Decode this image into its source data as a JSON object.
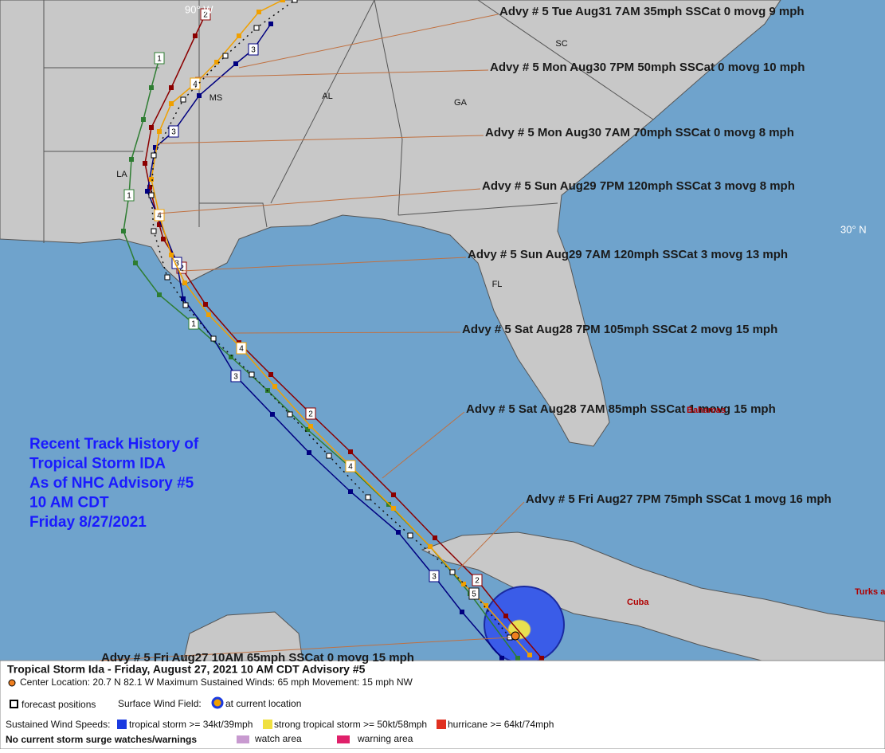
{
  "map_labels": {
    "states": [
      "SC",
      "GA",
      "AL",
      "MS",
      "LA",
      "FL"
    ],
    "cuba": "Cuba",
    "turks": "Turks a",
    "bahamas": "Bahamas",
    "lat": "30° N",
    "lon": "90° W"
  },
  "track_history": [
    "Recent Track History of",
    "Tropical Storm IDA",
    "As of NHC Advisory #5",
    "10 AM CDT",
    "Friday 8/27/2021"
  ],
  "advisories": [
    "Advy # 5 Tue Aug31 7AM  35mph SSCat 0 movg 9 mph",
    "Advy # 5 Mon Aug30 7PM  50mph SSCat 0 movg 10 mph",
    "Advy # 5 Mon Aug30 7AM  70mph SSCat 0 movg 8 mph",
    "Advy # 5 Sun Aug29 7PM  120mph SSCat 3 movg 8 mph",
    "Advy # 5 Sun Aug29 7AM  120mph SSCat 3 movg 13 mph",
    "Advy # 5 Sat Aug28 7PM  105mph SSCat 2 movg 15 mph",
    "Advy # 5 Sat Aug28 7AM  85mph SSCat 1 movg 15 mph",
    "Advy # 5 Fri Aug27 7PM  75mph SSCat 1 movg 16 mph",
    "Advy # 5 Fri Aug27 10AM  65mph SSCat 0 movg 15 mph"
  ],
  "tracks": [
    {
      "marker": "1",
      "color": "#2e7d32"
    },
    {
      "marker": "2",
      "color": "#8b0000"
    },
    {
      "marker": "3",
      "color": "#000080"
    },
    {
      "marker": "4",
      "color": "#f0a000"
    },
    {
      "marker": "5",
      "color": "#111111"
    }
  ],
  "legend": {
    "title": "Tropical Storm Ida  -  Friday, August 27, 2021  10 AM CDT   Advisory #5",
    "center": "Center Location: 20.7 N  82.1 W   Maximum Sustained Winds: 65 mph  Movement: 15 mph NW",
    "forecast": "forecast positions",
    "wind_field": "Surface Wind Field:",
    "current": "at current location",
    "speeds": "Sustained Wind Speeds:",
    "ts": "tropical storm >= 34kt/39mph",
    "sts": "strong tropical storm >= 50kt/58mph",
    "hu": "hurricane >= 64kt/74mph",
    "surge": "No current storm surge watches/warnings",
    "watch": "watch area",
    "warning": "warning area"
  }
}
